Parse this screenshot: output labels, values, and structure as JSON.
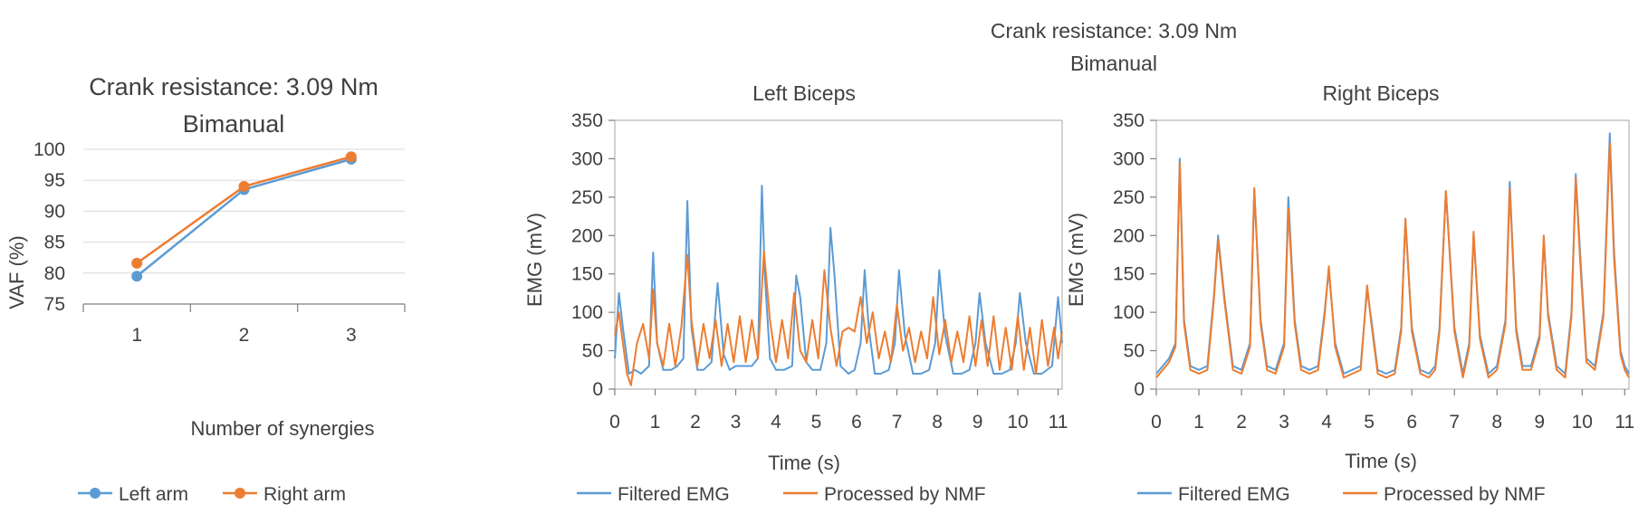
{
  "colors": {
    "blue": "#5b9bd5",
    "orange": "#ed7d31"
  },
  "figure": {
    "title_line1": "Crank resistance: 3.09 Nm",
    "title_line2": "Bimanual"
  },
  "chart_data": [
    {
      "type": "line",
      "title": "Crank resistance: 3.09 Nm",
      "subtitle": "Bimanual",
      "xlabel": "Number of synergies",
      "ylabel": "VAF (%)",
      "categories": [
        "1",
        "2",
        "3"
      ],
      "yticks": [
        "75",
        "80",
        "85",
        "90",
        "95",
        "100"
      ],
      "ylim": [
        75,
        100
      ],
      "grid": true,
      "legend": "bottom",
      "series": [
        {
          "name": "Left arm",
          "color": "#5b9bd5",
          "values": [
            79.5,
            93.5,
            98.4
          ]
        },
        {
          "name": "Right arm",
          "color": "#ed7d31",
          "values": [
            81.6,
            94.0,
            98.8
          ]
        }
      ]
    },
    {
      "type": "line",
      "title": "Left Biceps",
      "xlabel": "Time (s)",
      "ylabel": "EMG (mV)",
      "xticks": [
        "0",
        "1",
        "2",
        "3",
        "4",
        "5",
        "6",
        "7",
        "8",
        "9",
        "10",
        "11"
      ],
      "yticks": [
        "0",
        "50",
        "100",
        "150",
        "200",
        "250",
        "300",
        "350"
      ],
      "xlim": [
        0,
        11.1
      ],
      "ylim": [
        0,
        350
      ],
      "legend": "bottom",
      "series": [
        {
          "name": "Filtered EMG",
          "color": "#5b9bd5",
          "x": [
            0,
            0.1,
            0.2,
            0.35,
            0.5,
            0.65,
            0.85,
            0.95,
            1.05,
            1.2,
            1.4,
            1.55,
            1.7,
            1.8,
            1.9,
            2.05,
            2.2,
            2.4,
            2.55,
            2.7,
            2.85,
            3.0,
            3.2,
            3.4,
            3.55,
            3.65,
            3.72,
            3.85,
            4.0,
            4.2,
            4.4,
            4.5,
            4.6,
            4.75,
            4.9,
            5.1,
            5.25,
            5.35,
            5.45,
            5.6,
            5.8,
            5.95,
            6.1,
            6.2,
            6.3,
            6.45,
            6.6,
            6.8,
            6.95,
            7.05,
            7.2,
            7.4,
            7.6,
            7.8,
            7.95,
            8.05,
            8.2,
            8.4,
            8.6,
            8.8,
            8.95,
            9.05,
            9.2,
            9.4,
            9.6,
            9.8,
            9.95,
            10.05,
            10.2,
            10.4,
            10.6,
            10.85,
            11.0,
            11.1
          ],
          "values": [
            40,
            125,
            80,
            20,
            25,
            20,
            30,
            178,
            60,
            25,
            25,
            30,
            40,
            245,
            80,
            25,
            25,
            35,
            138,
            45,
            25,
            30,
            30,
            30,
            40,
            265,
            150,
            40,
            25,
            25,
            30,
            148,
            120,
            35,
            25,
            25,
            60,
            210,
            150,
            30,
            20,
            25,
            60,
            155,
            80,
            20,
            20,
            25,
            60,
            155,
            70,
            20,
            20,
            25,
            60,
            155,
            70,
            20,
            20,
            25,
            60,
            125,
            60,
            20,
            20,
            25,
            60,
            125,
            60,
            20,
            20,
            30,
            120,
            60
          ]
        },
        {
          "name": "Processed by NMF",
          "color": "#ed7d31",
          "x": [
            0,
            0.1,
            0.2,
            0.3,
            0.4,
            0.55,
            0.7,
            0.85,
            0.95,
            1.05,
            1.2,
            1.35,
            1.5,
            1.65,
            1.8,
            1.9,
            2.05,
            2.2,
            2.35,
            2.5,
            2.65,
            2.8,
            2.95,
            3.1,
            3.25,
            3.4,
            3.55,
            3.7,
            3.85,
            4.0,
            4.15,
            4.3,
            4.45,
            4.6,
            4.75,
            4.9,
            5.05,
            5.2,
            5.35,
            5.5,
            5.65,
            5.8,
            5.95,
            6.1,
            6.25,
            6.4,
            6.55,
            6.7,
            6.85,
            7.0,
            7.15,
            7.3,
            7.45,
            7.6,
            7.75,
            7.9,
            8.05,
            8.2,
            8.35,
            8.5,
            8.65,
            8.8,
            8.95,
            9.1,
            9.25,
            9.4,
            9.55,
            9.7,
            9.85,
            10.0,
            10.15,
            10.3,
            10.45,
            10.6,
            10.75,
            10.9,
            11.0,
            11.1
          ],
          "values": [
            70,
            100,
            60,
            20,
            5,
            60,
            85,
            40,
            130,
            60,
            30,
            85,
            30,
            80,
            175,
            90,
            30,
            85,
            40,
            90,
            30,
            85,
            35,
            95,
            35,
            90,
            40,
            180,
            90,
            35,
            90,
            40,
            125,
            50,
            35,
            90,
            40,
            155,
            80,
            30,
            75,
            80,
            75,
            120,
            60,
            100,
            40,
            75,
            35,
            110,
            50,
            80,
            35,
            75,
            40,
            120,
            45,
            90,
            35,
            75,
            35,
            95,
            30,
            90,
            30,
            95,
            25,
            80,
            25,
            95,
            25,
            80,
            20,
            90,
            30,
            80,
            40,
            75
          ]
        }
      ]
    },
    {
      "type": "line",
      "title": "Right Biceps",
      "xlabel": "Time (s)",
      "ylabel": "EMG (mV)",
      "xticks": [
        "0",
        "1",
        "2",
        "3",
        "4",
        "5",
        "6",
        "7",
        "8",
        "9",
        "10",
        "11"
      ],
      "yticks": [
        "0",
        "50",
        "100",
        "150",
        "200",
        "250",
        "300",
        "350"
      ],
      "xlim": [
        0,
        11.1
      ],
      "ylim": [
        0,
        350
      ],
      "legend": "bottom",
      "series": [
        {
          "name": "Filtered EMG",
          "color": "#5b9bd5",
          "x": [
            0,
            0.15,
            0.3,
            0.45,
            0.55,
            0.65,
            0.8,
            1.0,
            1.2,
            1.35,
            1.45,
            1.6,
            1.8,
            2.0,
            2.2,
            2.3,
            2.45,
            2.6,
            2.8,
            3.0,
            3.1,
            3.25,
            3.4,
            3.6,
            3.8,
            3.95,
            4.05,
            4.2,
            4.4,
            4.6,
            4.8,
            4.95,
            5.05,
            5.2,
            5.4,
            5.6,
            5.75,
            5.85,
            6.0,
            6.2,
            6.4,
            6.55,
            6.65,
            6.8,
            7.0,
            7.2,
            7.35,
            7.45,
            7.6,
            7.8,
            8.0,
            8.2,
            8.3,
            8.45,
            8.6,
            8.8,
            9.0,
            9.1,
            9.2,
            9.4,
            9.6,
            9.75,
            9.85,
            9.95,
            10.1,
            10.3,
            10.5,
            10.65,
            10.75,
            10.9,
            11.0,
            11.1
          ],
          "values": [
            20,
            30,
            40,
            60,
            300,
            90,
            30,
            25,
            30,
            120,
            200,
            120,
            30,
            25,
            60,
            260,
            90,
            30,
            25,
            60,
            250,
            90,
            30,
            25,
            30,
            100,
            155,
            60,
            20,
            25,
            30,
            130,
            90,
            25,
            20,
            25,
            80,
            220,
            80,
            25,
            20,
            30,
            80,
            258,
            80,
            20,
            60,
            200,
            70,
            20,
            30,
            90,
            270,
            80,
            30,
            30,
            70,
            195,
            100,
            30,
            20,
            100,
            280,
            180,
            40,
            30,
            100,
            333,
            180,
            50,
            30,
            20
          ]
        },
        {
          "name": "Processed by NMF",
          "color": "#ed7d31",
          "x": [
            0,
            0.15,
            0.3,
            0.45,
            0.55,
            0.65,
            0.8,
            1.0,
            1.2,
            1.35,
            1.45,
            1.6,
            1.8,
            2.0,
            2.2,
            2.3,
            2.45,
            2.6,
            2.8,
            3.0,
            3.1,
            3.25,
            3.4,
            3.6,
            3.8,
            3.95,
            4.05,
            4.2,
            4.4,
            4.6,
            4.8,
            4.95,
            5.05,
            5.2,
            5.4,
            5.6,
            5.75,
            5.85,
            6.0,
            6.2,
            6.4,
            6.55,
            6.65,
            6.8,
            7.0,
            7.2,
            7.35,
            7.45,
            7.6,
            7.8,
            8.0,
            8.2,
            8.3,
            8.45,
            8.6,
            8.8,
            9.0,
            9.1,
            9.2,
            9.4,
            9.6,
            9.75,
            9.85,
            9.95,
            10.1,
            10.3,
            10.5,
            10.65,
            10.75,
            10.9,
            11.0,
            11.1
          ],
          "values": [
            15,
            25,
            35,
            55,
            295,
            85,
            25,
            20,
            25,
            115,
            195,
            115,
            25,
            20,
            55,
            262,
            85,
            25,
            20,
            55,
            235,
            85,
            25,
            20,
            25,
            95,
            160,
            55,
            15,
            20,
            25,
            135,
            85,
            20,
            15,
            20,
            75,
            222,
            75,
            20,
            15,
            25,
            75,
            258,
            75,
            15,
            55,
            205,
            65,
            15,
            25,
            85,
            262,
            75,
            25,
            25,
            65,
            200,
            95,
            25,
            15,
            95,
            275,
            170,
            35,
            25,
            95,
            320,
            170,
            45,
            25,
            15
          ]
        }
      ]
    }
  ]
}
